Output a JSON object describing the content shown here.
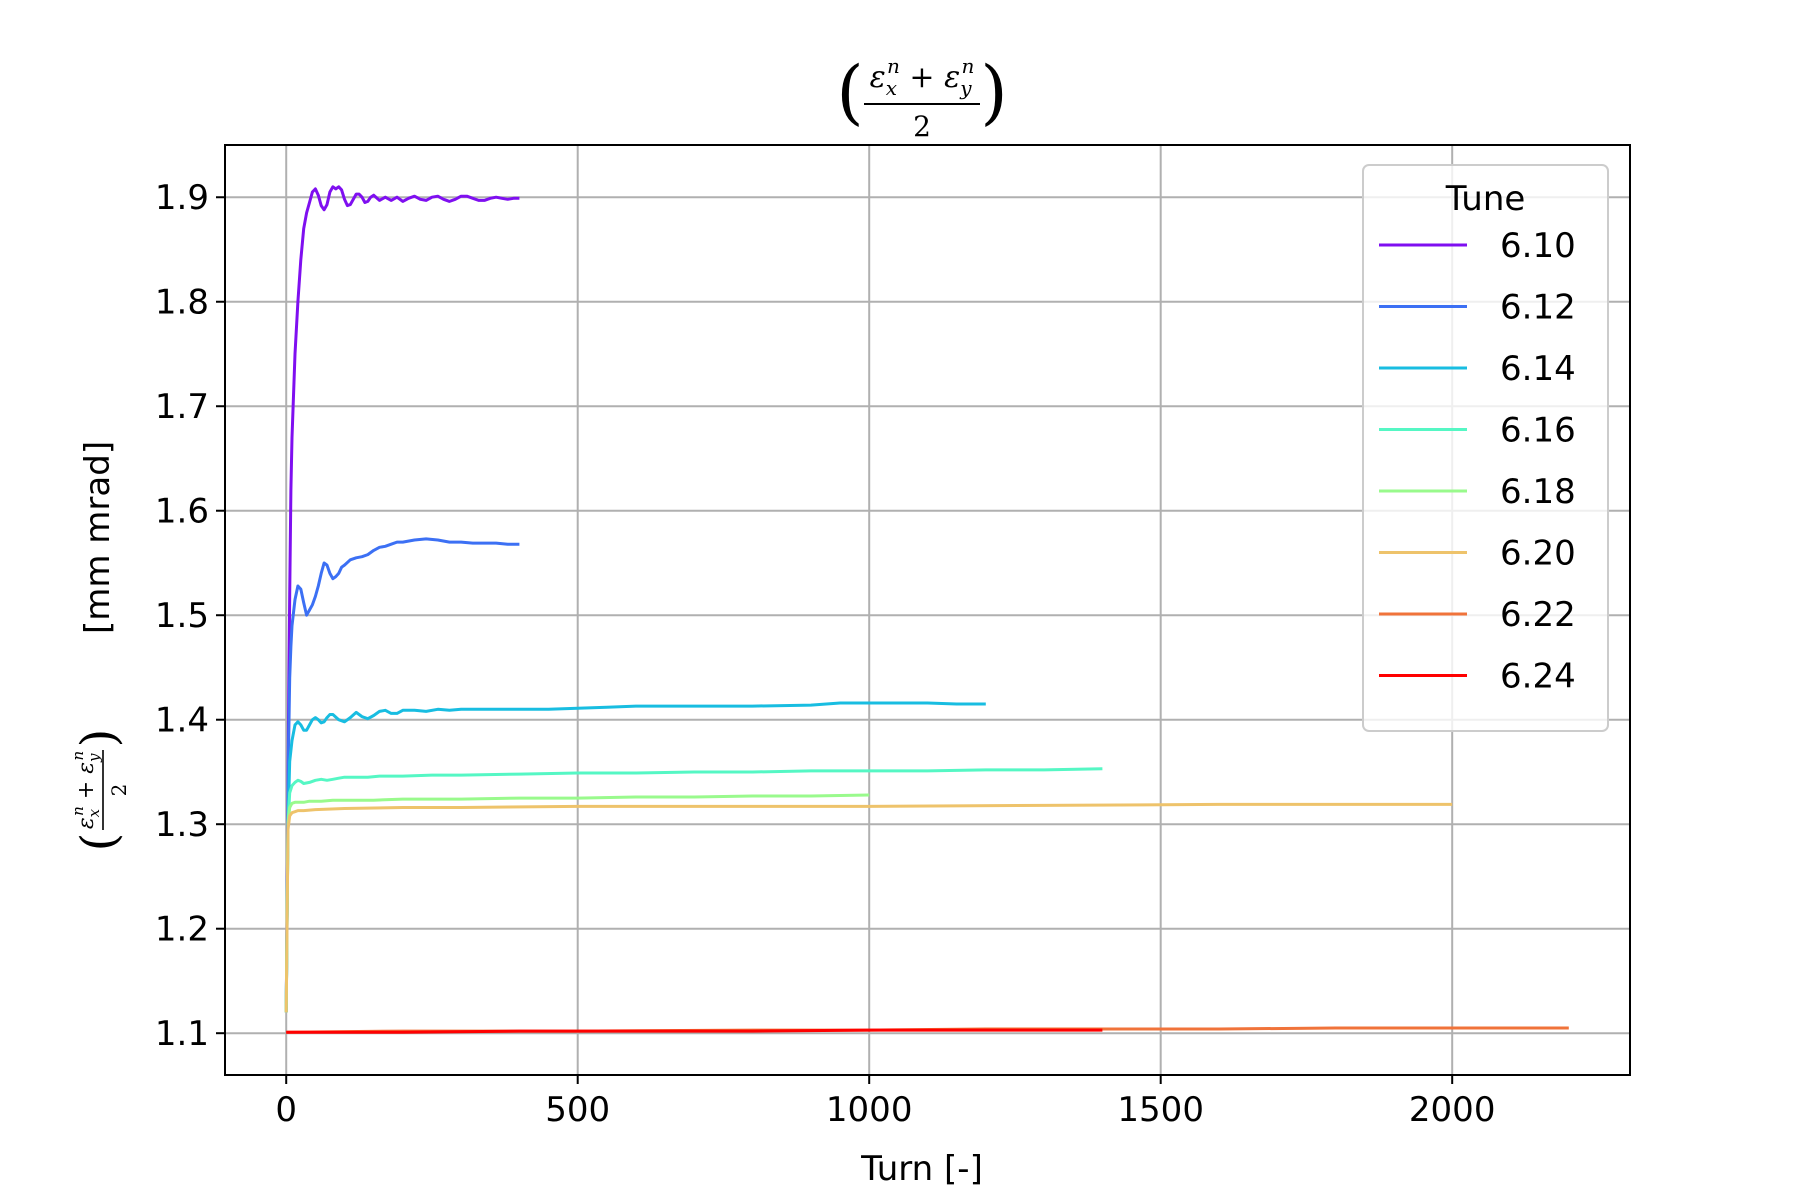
{
  "chart_data": {
    "type": "line",
    "title_math": {
      "numerator_parts": [
        "ε",
        "x",
        "n",
        " + ",
        "ε",
        "y",
        "n"
      ],
      "denominator": "2"
    },
    "xlabel": "Turn [-]",
    "ylabel_unit": "[mm mrad]",
    "xlim": [
      -105,
      2305
    ],
    "ylim": [
      1.06,
      1.95
    ],
    "xticks": [
      0,
      500,
      1000,
      1500,
      2000
    ],
    "xtick_labels": [
      "0",
      "500",
      "1000",
      "1500",
      "2000"
    ],
    "yticks": [
      1.1,
      1.2,
      1.3,
      1.4,
      1.5,
      1.6,
      1.7,
      1.8,
      1.9
    ],
    "ytick_labels": [
      "1.1",
      "1.2",
      "1.3",
      "1.4",
      "1.5",
      "1.6",
      "1.7",
      "1.8",
      "1.9"
    ],
    "grid": true,
    "legend": {
      "title": "Tune",
      "placement": "top-right"
    },
    "series": [
      {
        "name": "6.10",
        "color": "#7f0ff0",
        "x": [
          0,
          2,
          4,
          6,
          8,
          10,
          15,
          20,
          25,
          30,
          35,
          40,
          45,
          50,
          55,
          60,
          65,
          70,
          75,
          80,
          85,
          90,
          95,
          100,
          105,
          110,
          115,
          120,
          125,
          130,
          135,
          140,
          145,
          150,
          160,
          170,
          180,
          190,
          200,
          210,
          220,
          230,
          240,
          250,
          260,
          270,
          280,
          290,
          300,
          310,
          320,
          330,
          340,
          350,
          360,
          370,
          380,
          390,
          400
        ],
        "y": [
          1.12,
          1.25,
          1.4,
          1.52,
          1.62,
          1.67,
          1.75,
          1.8,
          1.84,
          1.87,
          1.885,
          1.895,
          1.905,
          1.908,
          1.902,
          1.892,
          1.888,
          1.893,
          1.905,
          1.91,
          1.908,
          1.91,
          1.907,
          1.898,
          1.892,
          1.893,
          1.898,
          1.903,
          1.903,
          1.9,
          1.895,
          1.896,
          1.9,
          1.902,
          1.897,
          1.9,
          1.897,
          1.9,
          1.896,
          1.899,
          1.901,
          1.898,
          1.897,
          1.9,
          1.901,
          1.898,
          1.896,
          1.898,
          1.901,
          1.901,
          1.899,
          1.897,
          1.897,
          1.899,
          1.9,
          1.899,
          1.898,
          1.899,
          1.899
        ]
      },
      {
        "name": "6.12",
        "color": "#3c70f4",
        "x": [
          0,
          2,
          4,
          6,
          8,
          10,
          15,
          20,
          25,
          30,
          35,
          40,
          45,
          50,
          55,
          60,
          65,
          70,
          75,
          80,
          85,
          90,
          95,
          100,
          110,
          120,
          130,
          140,
          150,
          160,
          170,
          180,
          190,
          200,
          220,
          240,
          260,
          280,
          300,
          320,
          340,
          360,
          380,
          400
        ],
        "y": [
          1.12,
          1.25,
          1.37,
          1.44,
          1.47,
          1.49,
          1.515,
          1.528,
          1.525,
          1.512,
          1.5,
          1.505,
          1.51,
          1.518,
          1.528,
          1.54,
          1.55,
          1.548,
          1.54,
          1.535,
          1.537,
          1.54,
          1.546,
          1.548,
          1.553,
          1.555,
          1.556,
          1.558,
          1.562,
          1.565,
          1.566,
          1.568,
          1.57,
          1.57,
          1.572,
          1.573,
          1.572,
          1.57,
          1.57,
          1.569,
          1.569,
          1.569,
          1.568,
          1.568
        ]
      },
      {
        "name": "6.14",
        "color": "#18bde1",
        "x": [
          0,
          3,
          6,
          10,
          15,
          20,
          25,
          30,
          35,
          40,
          45,
          50,
          55,
          60,
          65,
          70,
          75,
          80,
          90,
          100,
          110,
          120,
          130,
          140,
          150,
          160,
          170,
          180,
          190,
          200,
          220,
          240,
          260,
          280,
          300,
          350,
          400,
          450,
          500,
          550,
          600,
          700,
          800,
          900,
          950,
          1000,
          1050,
          1100,
          1150,
          1200
        ],
        "y": [
          1.12,
          1.3,
          1.36,
          1.38,
          1.395,
          1.398,
          1.395,
          1.39,
          1.39,
          1.395,
          1.4,
          1.402,
          1.4,
          1.397,
          1.398,
          1.402,
          1.405,
          1.405,
          1.4,
          1.398,
          1.402,
          1.407,
          1.403,
          1.401,
          1.404,
          1.408,
          1.409,
          1.406,
          1.406,
          1.409,
          1.409,
          1.408,
          1.41,
          1.409,
          1.41,
          1.41,
          1.41,
          1.41,
          1.411,
          1.412,
          1.413,
          1.413,
          1.413,
          1.414,
          1.416,
          1.416,
          1.416,
          1.416,
          1.415,
          1.415
        ]
      },
      {
        "name": "6.16",
        "color": "#55f7c4",
        "x": [
          0,
          3,
          6,
          10,
          15,
          20,
          25,
          30,
          40,
          50,
          60,
          70,
          80,
          90,
          100,
          120,
          140,
          160,
          180,
          200,
          250,
          300,
          400,
          500,
          600,
          700,
          800,
          900,
          1000,
          1100,
          1200,
          1300,
          1400
        ],
        "y": [
          1.12,
          1.3,
          1.33,
          1.337,
          1.34,
          1.342,
          1.341,
          1.339,
          1.34,
          1.342,
          1.343,
          1.342,
          1.343,
          1.344,
          1.345,
          1.345,
          1.345,
          1.346,
          1.346,
          1.346,
          1.347,
          1.347,
          1.348,
          1.349,
          1.349,
          1.35,
          1.35,
          1.351,
          1.351,
          1.351,
          1.352,
          1.352,
          1.353
        ]
      },
      {
        "name": "6.18",
        "color": "#99fa8c",
        "x": [
          0,
          3,
          6,
          10,
          15,
          20,
          30,
          40,
          60,
          80,
          100,
          150,
          200,
          300,
          400,
          500,
          600,
          700,
          800,
          900,
          1000
        ],
        "y": [
          1.12,
          1.3,
          1.316,
          1.32,
          1.321,
          1.321,
          1.321,
          1.322,
          1.322,
          1.323,
          1.323,
          1.323,
          1.324,
          1.324,
          1.325,
          1.325,
          1.326,
          1.326,
          1.327,
          1.327,
          1.328
        ]
      },
      {
        "name": "6.20",
        "color": "#eec36b",
        "x": [
          0,
          3,
          6,
          10,
          15,
          20,
          30,
          50,
          100,
          200,
          300,
          500,
          700,
          1000,
          1300,
          1600,
          2000
        ],
        "y": [
          1.12,
          1.295,
          1.308,
          1.311,
          1.312,
          1.313,
          1.313,
          1.314,
          1.315,
          1.316,
          1.316,
          1.317,
          1.317,
          1.317,
          1.318,
          1.319,
          1.319
        ]
      },
      {
        "name": "6.22",
        "color": "#f0733a",
        "x": [
          0,
          200,
          500,
          800,
          1000,
          1200,
          1400,
          1600,
          1800,
          2000,
          2200
        ],
        "y": [
          1.101,
          1.102,
          1.102,
          1.103,
          1.103,
          1.104,
          1.104,
          1.104,
          1.105,
          1.105,
          1.105
        ]
      },
      {
        "name": "6.24",
        "color": "#ff0000",
        "x": [
          0,
          200,
          400,
          600,
          800,
          1000,
          1200,
          1400
        ],
        "y": [
          1.101,
          1.101,
          1.102,
          1.102,
          1.102,
          1.103,
          1.103,
          1.103
        ]
      }
    ]
  }
}
